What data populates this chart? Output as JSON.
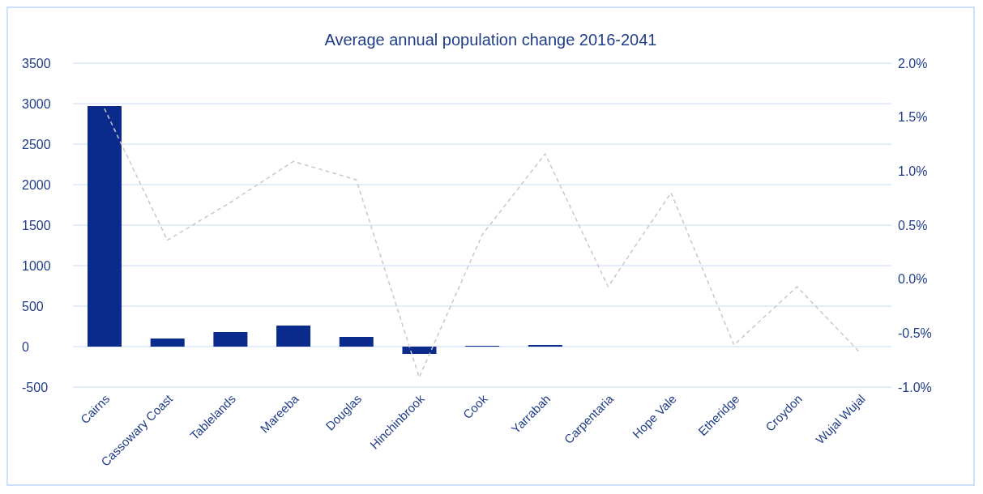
{
  "chart_data": {
    "type": "bar",
    "title": "Average annual population change 2016-2041",
    "categories": [
      "Cairns",
      "Cassowary Coast",
      "Tablelands",
      "Mareeba",
      "Douglas",
      "Hinchinbrook",
      "Cook",
      "Yarrabah",
      "Carpentaria",
      "Hope Vale",
      "Etheridge",
      "Croydon",
      "Wujal Wujal"
    ],
    "series": [
      {
        "color": "#0a2a8c",
        "values": [
          2970,
          100,
          180,
          260,
          120,
          -90,
          10,
          20,
          0,
          0,
          0,
          0,
          0
        ]
      },
      {
        "type": "line",
        "axis": "y2",
        "color": "#c8c8c8",
        "line_style": "dashed",
        "values": [
          1.58,
          0.36,
          0.71,
          1.09,
          0.92,
          -0.91,
          0.41,
          1.16,
          -0.07,
          0.8,
          -0.61,
          -0.07,
          -0.68
        ]
      }
    ],
    "ylim": [
      -500,
      3500
    ],
    "yticks": [
      -500,
      0,
      500,
      1000,
      1500,
      2000,
      2500,
      3000,
      3500
    ],
    "y2lim": [
      -1,
      2
    ],
    "y2ticks": [
      {
        "value": -1,
        "label": "-1.0%"
      },
      {
        "value": -0.5,
        "label": "-0.5%"
      },
      {
        "value": 0,
        "label": "0.0%"
      },
      {
        "value": 0.5,
        "label": "0.5%"
      },
      {
        "value": 1,
        "label": "1.0%"
      },
      {
        "value": 1.5,
        "label": "1.5%"
      },
      {
        "value": 2,
        "label": "2.0%"
      }
    ],
    "grid": "y",
    "marker": "none"
  }
}
